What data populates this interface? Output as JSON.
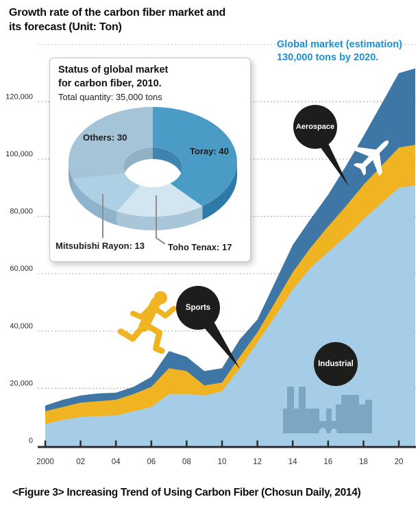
{
  "header": {
    "title_lines": [
      "Growth rate of the carbon fiber market and",
      "its forecast (Unit: Ton)"
    ]
  },
  "annotation": {
    "lines": [
      "Global market (estimation)",
      "130,000 tons by 2020."
    ],
    "color": "#1e8fd2"
  },
  "caption": {
    "text": "<Figure 3> Increasing Trend of Using Carbon Fiber (Chosun Daily, 2014)"
  },
  "badges": [
    {
      "label": "Aerospace"
    },
    {
      "label": "Sports"
    },
    {
      "label": "Industrial"
    }
  ],
  "inset": {
    "title_lines": [
      "Status of global market",
      "for carbon fiber, 2010."
    ],
    "subtitle": "Total quantity: 35,000 tons"
  },
  "chart_data": [
    {
      "type": "area",
      "stacked": true,
      "title": "Growth rate of the carbon fiber market and its forecast",
      "unit": "Ton",
      "x": [
        2000,
        2001,
        2002,
        2003,
        2004,
        2005,
        2006,
        2007,
        2008,
        2009,
        2010,
        2011,
        2012,
        2013,
        2014,
        2015,
        2016,
        2017,
        2018,
        2019,
        2020
      ],
      "series": [
        {
          "name": "Industrial",
          "color": "#a6cde8",
          "values": [
            7500,
            9000,
            10000,
            10300,
            10500,
            12000,
            13500,
            18000,
            18000,
            17500,
            19000,
            27000,
            36000,
            45000,
            54500,
            62000,
            67500,
            73000,
            79000,
            84500,
            90000
          ]
        },
        {
          "name": "Sports",
          "color": "#f0b422",
          "values": [
            4500,
            4500,
            5000,
            5200,
            5500,
            6000,
            7000,
            9000,
            8000,
            3500,
            3000,
            4000,
            3500,
            5000,
            6000,
            7000,
            9000,
            10500,
            12000,
            13000,
            14000
          ]
        },
        {
          "name": "Aerospace",
          "color": "#3e76a6",
          "values": [
            2000,
            2500,
            2500,
            2700,
            2500,
            2500,
            3500,
            6000,
            5000,
            5000,
            5000,
            6000,
            4500,
            7000,
            9500,
            10000,
            11000,
            14000,
            17000,
            21500,
            26000
          ]
        }
      ],
      "totals_note": "total reaches 130,000 tons by 2020",
      "ylim": [
        0,
        140000
      ],
      "grid": true,
      "gridline_values": [
        20000,
        40000,
        60000,
        80000,
        100000,
        120000,
        140000
      ],
      "yticks": {
        "values": [
          0,
          20000,
          40000,
          60000,
          80000,
          100000,
          120000
        ],
        "labels": [
          "0",
          "20,000",
          "40,000",
          "60,000",
          "80,000",
          "100,000",
          "120,000"
        ]
      },
      "xticks": {
        "values": [
          2000,
          2002,
          2004,
          2006,
          2008,
          2010,
          2012,
          2014,
          2016,
          2018,
          2020
        ],
        "labels": [
          "2000",
          "02",
          "04",
          "06",
          "08",
          "10",
          "12",
          "14",
          "16",
          "18",
          "20"
        ]
      },
      "legend_position": "on-chart-badges"
    },
    {
      "type": "pie",
      "title": "Status of global market for carbon fiber, 2010.",
      "subtitle": "Total quantity: 35,000 tons",
      "start": "12-o-clock, clockwise",
      "slices": [
        {
          "label": "Toray",
          "value": 40,
          "display": "Toray: 40",
          "color": "#4a9bc6",
          "side_color": "#2d7aa8"
        },
        {
          "label": "Toho Tenax",
          "value": 17,
          "display": "Toho Tenax: 17",
          "color": "#d2e5f1",
          "side_color": "#a9c6d8"
        },
        {
          "label": "Mitsubishi Rayon",
          "value": 13,
          "display": "Mitsubishi Rayon: 13",
          "color": "#aed0e5",
          "side_color": "#8db4cc"
        },
        {
          "label": "Others",
          "value": 30,
          "display": "Others: 30",
          "color": "#a6c4d8",
          "side_color": "#87aac1"
        }
      ]
    }
  ]
}
